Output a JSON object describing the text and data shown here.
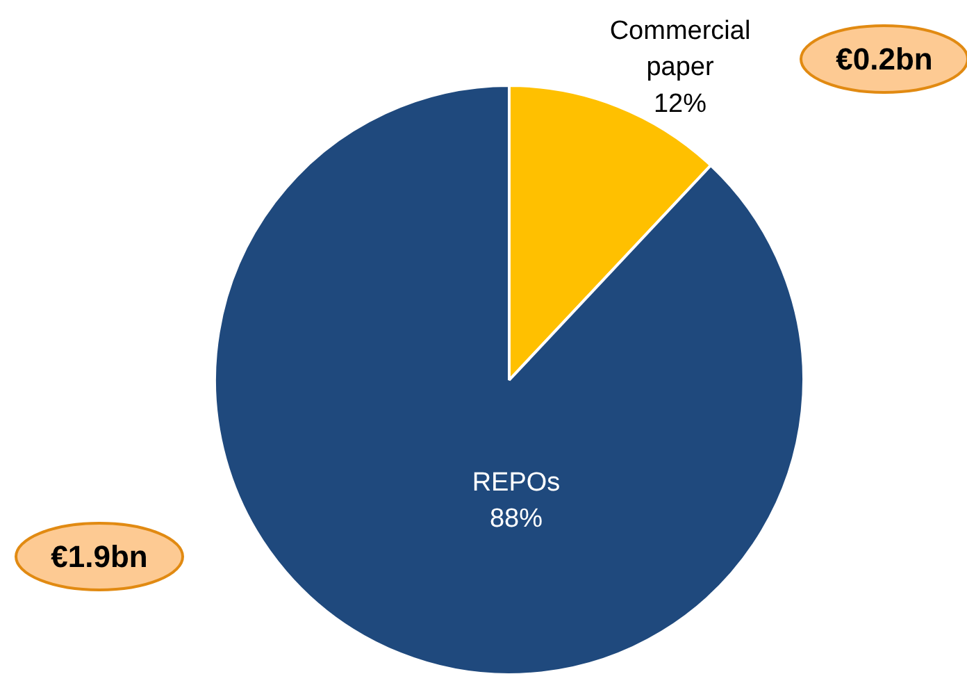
{
  "chart_data": {
    "type": "pie",
    "categories": [
      "Commercial paper",
      "REPOs"
    ],
    "values": [
      12,
      88
    ],
    "colors": [
      "#ffc000",
      "#1f497d"
    ],
    "value_labels": [
      "12%",
      "88%"
    ],
    "annotations": [
      "€0.2bn",
      "€1.9bn"
    ]
  }
}
